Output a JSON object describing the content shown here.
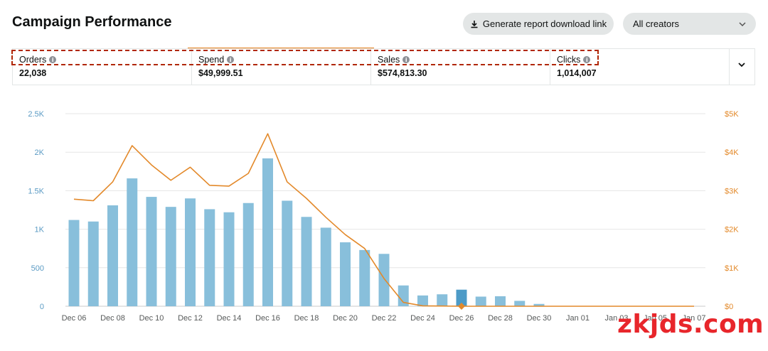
{
  "header": {
    "title": "Campaign Performance",
    "report_button_label": "Generate report download link",
    "creators_select_value": "All creators"
  },
  "metrics": [
    {
      "label": "Orders",
      "value": "22,038"
    },
    {
      "label": "Spend",
      "value": "$49,999.51"
    },
    {
      "label": "Sales",
      "value": "$574,813.30"
    },
    {
      "label": "Clicks",
      "value": "1,014,007"
    }
  ],
  "colors": {
    "bar": "#88bfdb",
    "bar_highlight": "#4d9bc7",
    "line": "#e3892a",
    "left_axis": "#5b9bc4",
    "right_axis": "#e3892a",
    "highlight_border": "#b12704"
  },
  "chart_data": {
    "type": "bar",
    "categories": [
      "Dec 06",
      "Dec 07",
      "Dec 08",
      "Dec 09",
      "Dec 10",
      "Dec 11",
      "Dec 12",
      "Dec 13",
      "Dec 14",
      "Dec 15",
      "Dec 16",
      "Dec 17",
      "Dec 18",
      "Dec 19",
      "Dec 20",
      "Dec 21",
      "Dec 22",
      "Dec 23",
      "Dec 24",
      "Dec 25",
      "Dec 26",
      "Dec 27",
      "Dec 28",
      "Dec 29",
      "Dec 30",
      "Dec 31",
      "Jan 01",
      "Jan 02",
      "Jan 03",
      "Jan 04",
      "Jan 05",
      "Jan 06",
      "Jan 07"
    ],
    "x_tick_labels": [
      "Dec 06",
      "Dec 08",
      "Dec 10",
      "Dec 12",
      "Dec 14",
      "Dec 16",
      "Dec 18",
      "Dec 20",
      "Dec 22",
      "Dec 24",
      "Dec 26",
      "Dec 28",
      "Dec 30",
      "Jan 01",
      "Jan 03",
      "Jan 05",
      "Jan 07"
    ],
    "series": [
      {
        "values": [
          1120,
          1100,
          1310,
          1660,
          1420,
          1290,
          1400,
          1260,
          1220,
          1340,
          1920,
          1370,
          1160,
          1020,
          830,
          730,
          680,
          270,
          140,
          155,
          215,
          125,
          130,
          70,
          30,
          0,
          0,
          0,
          0,
          0,
          0,
          0,
          0
        ]
      },
      {
        "axis": "right",
        "values": [
          2780,
          2740,
          3230,
          4170,
          3670,
          3270,
          3610,
          3140,
          3120,
          3450,
          4480,
          3230,
          2800,
          2310,
          1860,
          1500,
          720,
          100,
          10,
          5,
          0,
          0,
          0,
          0,
          0,
          0,
          0,
          0,
          0,
          0,
          0,
          0,
          0
        ]
      }
    ],
    "highlight_index": 20,
    "left_ticks": [
      "0",
      "500",
      "1K",
      "1.5K",
      "2K",
      "2.5K"
    ],
    "right_ticks": [
      "$0",
      "$1K",
      "$2K",
      "$3K",
      "$4K",
      "$5K"
    ],
    "ylim": [
      0,
      2500
    ],
    "y2lim": [
      0,
      5000
    ],
    "grid": true
  },
  "watermark": "zkjds.com"
}
